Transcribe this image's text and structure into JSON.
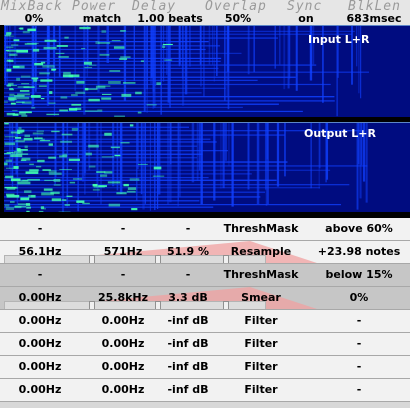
{
  "header": {
    "titles": [
      "MixBack",
      "Power",
      "Delay",
      "Overlap",
      "Sync",
      "BlkLen"
    ],
    "values": [
      "0%",
      "match",
      "1.00 beats",
      "50%",
      "on",
      "683msec"
    ],
    "colors": {
      "title": "#9a9a9a",
      "value": "#000000"
    }
  },
  "spectrograms": [
    {
      "label": "Input L+R"
    },
    {
      "label": "Output L+R"
    }
  ],
  "colors": {
    "spectrum_low": "#000c80",
    "spectrum_mid": "#1040ff",
    "spectrum_high": "#40ffb0",
    "wedge": "#f0a0a0"
  },
  "rows": [
    {
      "c1": "-",
      "c2": "-",
      "c3": "-",
      "mode": "ThreshMask",
      "value": "above 60%",
      "shade": "light",
      "ramp": false
    },
    {
      "c1": "56.1Hz",
      "c2": "571Hz",
      "c3": "51.9 %",
      "mode": "Resample",
      "value": "+23.98 notes",
      "shade": "light",
      "ramp": true
    },
    {
      "c1": "-",
      "c2": "-",
      "c3": "-",
      "mode": "ThreshMask",
      "value": "below 15%",
      "shade": "dark",
      "ramp": false
    },
    {
      "c1": "0.00Hz",
      "c2": "25.8kHz",
      "c3": "3.3 dB",
      "mode": "Smear",
      "value": "0%",
      "shade": "dark",
      "ramp": true
    },
    {
      "c1": "0.00Hz",
      "c2": "0.00Hz",
      "c3": "-inf dB",
      "mode": "Filter",
      "value": "-",
      "shade": "light",
      "ramp": false
    },
    {
      "c1": "0.00Hz",
      "c2": "0.00Hz",
      "c3": "-inf dB",
      "mode": "Filter",
      "value": "-",
      "shade": "light",
      "ramp": false
    },
    {
      "c1": "0.00Hz",
      "c2": "0.00Hz",
      "c3": "-inf dB",
      "mode": "Filter",
      "value": "-",
      "shade": "light",
      "ramp": false
    },
    {
      "c1": "0.00Hz",
      "c2": "0.00Hz",
      "c3": "-inf dB",
      "mode": "Filter",
      "value": "-",
      "shade": "light",
      "ramp": false
    }
  ]
}
